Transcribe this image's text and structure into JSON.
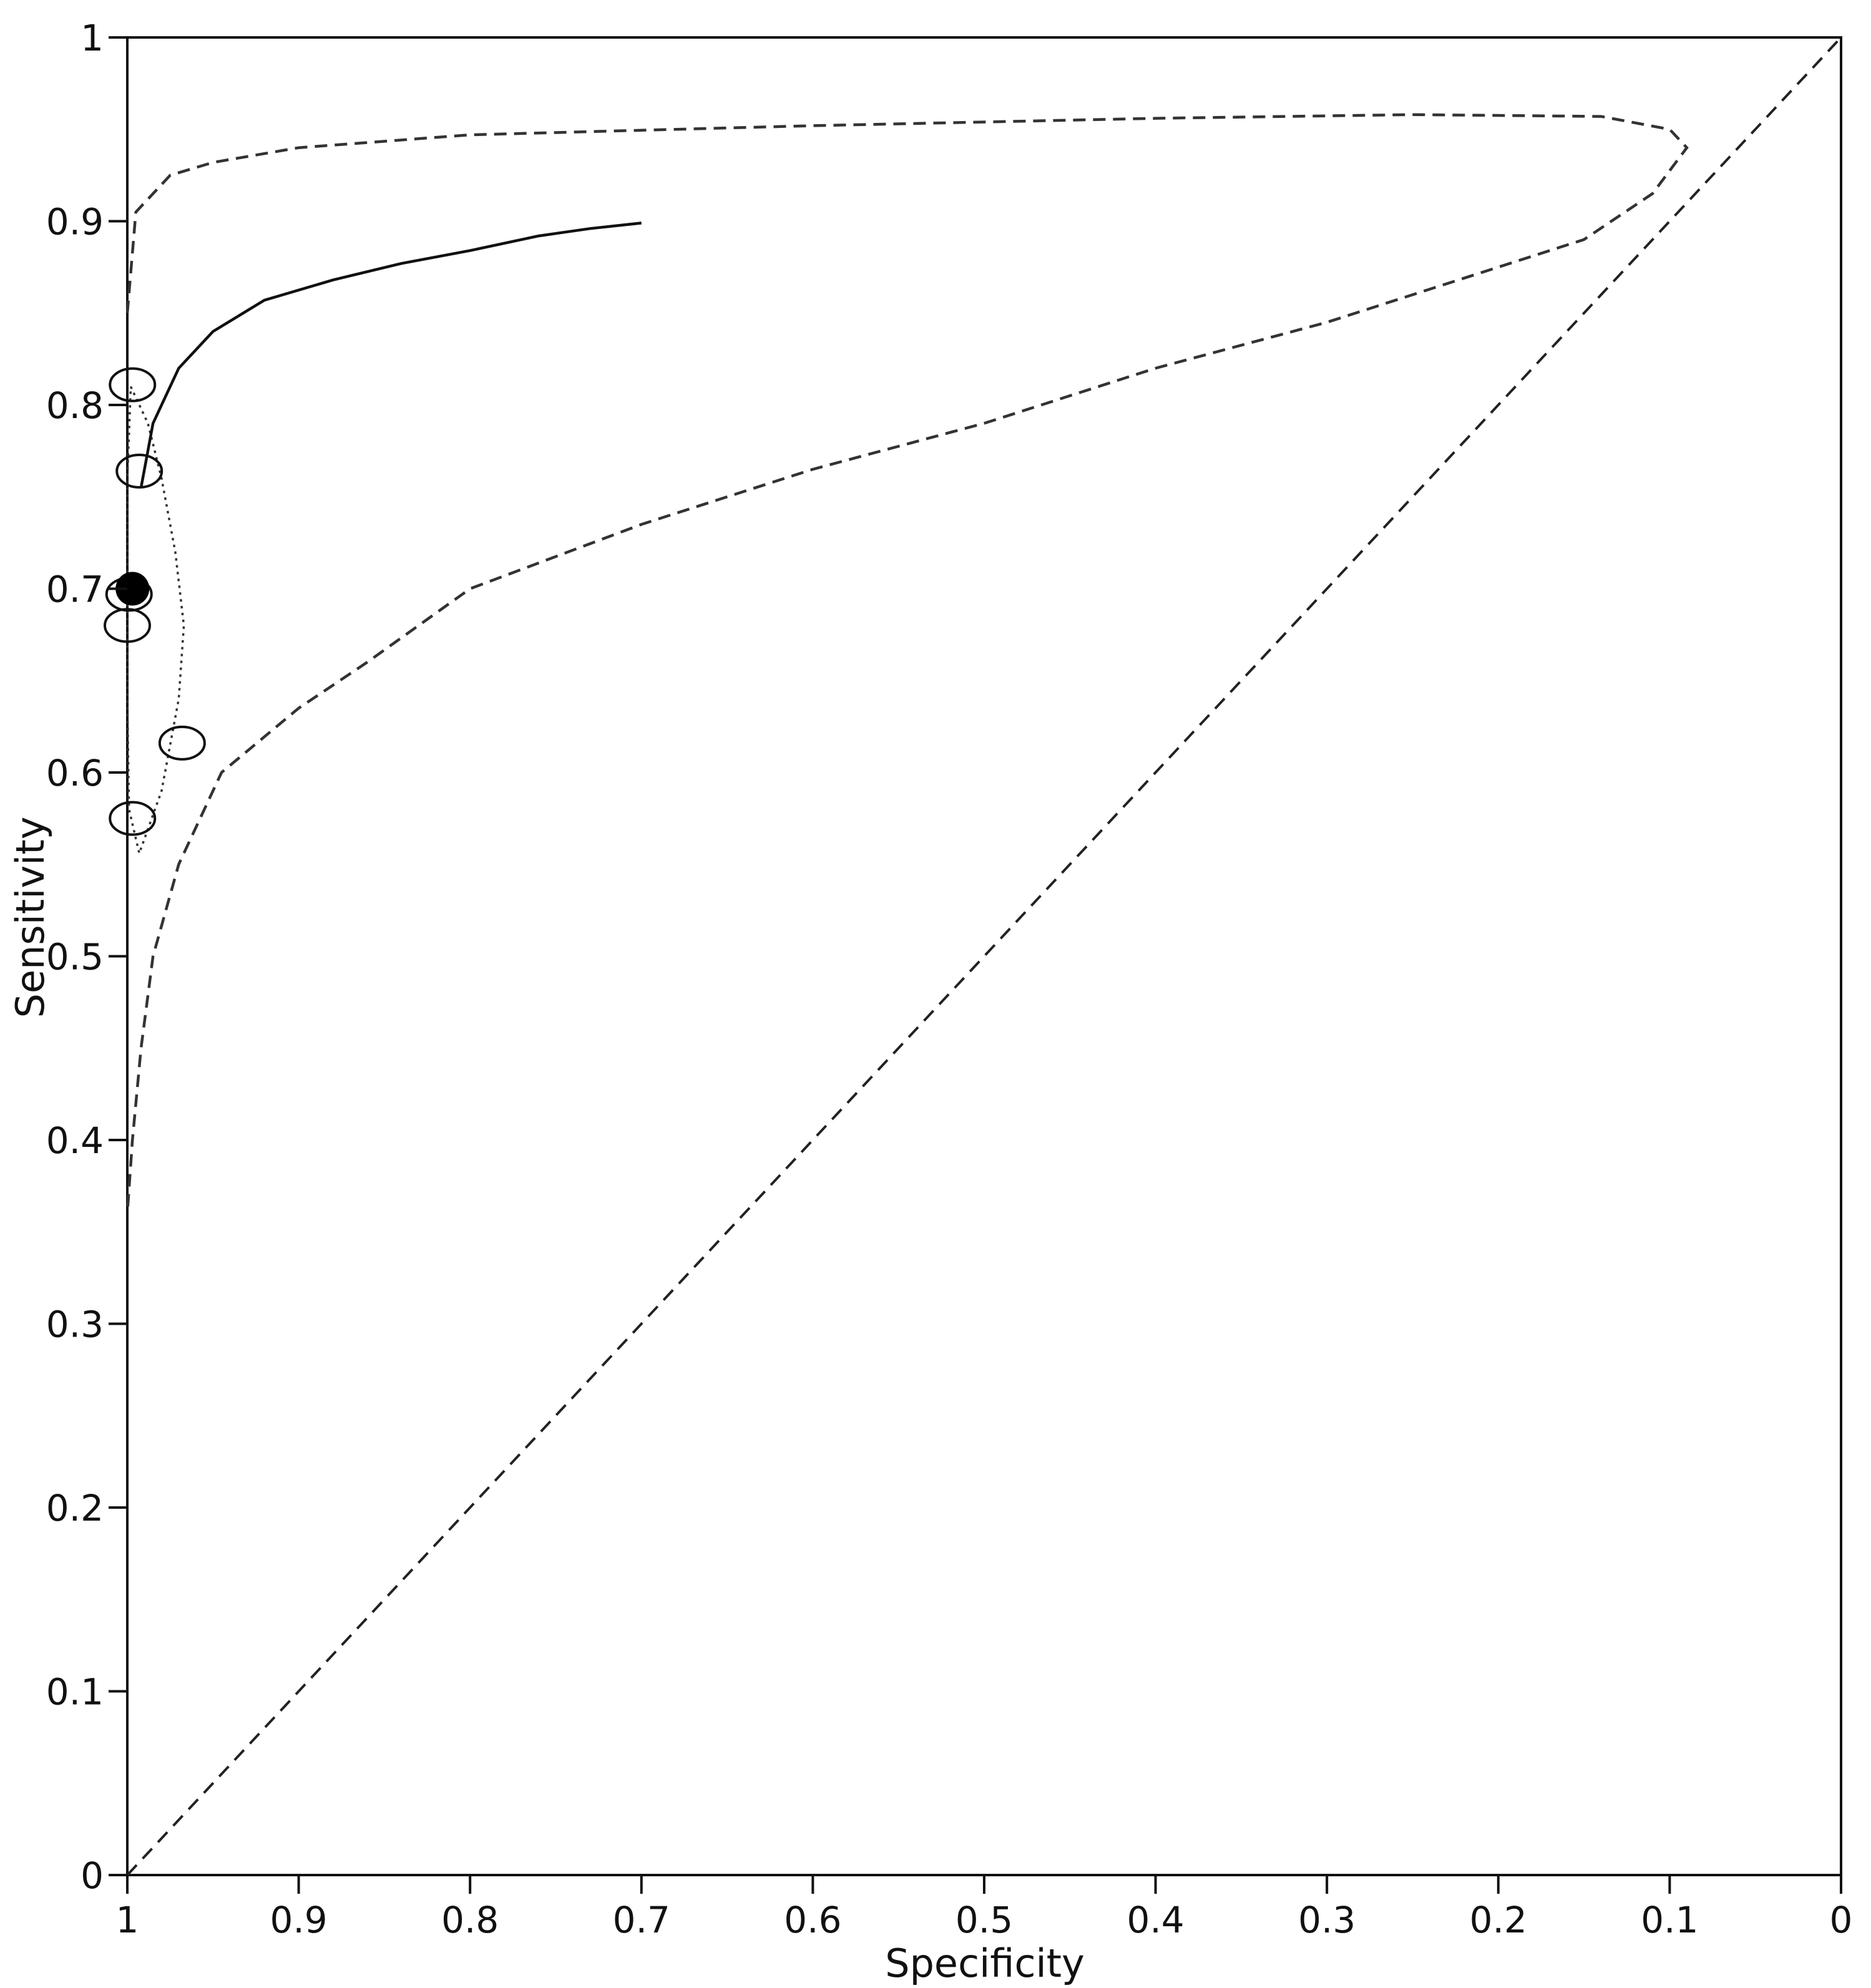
{
  "chart_data": {
    "type": "scatter",
    "title": "",
    "xlabel": "Specificity",
    "ylabel": "Sensitivity",
    "xlim": [
      1,
      0
    ],
    "ylim": [
      0,
      1
    ],
    "x_reversed": true,
    "grid": false,
    "legend": "none",
    "x_ticks": [
      "1",
      "0.9",
      "0.8",
      "0.7",
      "0.6",
      "0.5",
      "0.4",
      "0.3",
      "0.2",
      "0.1",
      "0"
    ],
    "y_ticks": [
      "0",
      "0.1",
      "0.2",
      "0.3",
      "0.4",
      "0.5",
      "0.6",
      "0.7",
      "0.8",
      "0.9",
      "1"
    ],
    "studies": [
      {
        "specificity": 0.997,
        "sensitivity": 0.811
      },
      {
        "specificity": 0.993,
        "sensitivity": 0.764
      },
      {
        "specificity": 1.0,
        "sensitivity": 0.68
      },
      {
        "specificity": 0.999,
        "sensitivity": 0.697
      },
      {
        "specificity": 0.968,
        "sensitivity": 0.616
      },
      {
        "specificity": 0.997,
        "sensitivity": 0.575
      }
    ],
    "summary_point": {
      "specificity": 0.997,
      "sensitivity": 0.7
    },
    "sroc_curve": [
      {
        "specificity": 0.992,
        "sensitivity": 0.755
      },
      {
        "specificity": 0.985,
        "sensitivity": 0.79
      },
      {
        "specificity": 0.97,
        "sensitivity": 0.82
      },
      {
        "specificity": 0.95,
        "sensitivity": 0.84
      },
      {
        "specificity": 0.92,
        "sensitivity": 0.857
      },
      {
        "specificity": 0.88,
        "sensitivity": 0.868
      },
      {
        "specificity": 0.84,
        "sensitivity": 0.877
      },
      {
        "specificity": 0.8,
        "sensitivity": 0.884
      },
      {
        "specificity": 0.76,
        "sensitivity": 0.892
      },
      {
        "specificity": 0.73,
        "sensitivity": 0.896
      },
      {
        "specificity": 0.7,
        "sensitivity": 0.899
      }
    ],
    "confidence_region": [
      {
        "specificity": 0.998,
        "sensitivity": 0.81
      },
      {
        "specificity": 0.988,
        "sensitivity": 0.79
      },
      {
        "specificity": 0.98,
        "sensitivity": 0.76
      },
      {
        "specificity": 0.972,
        "sensitivity": 0.72
      },
      {
        "specificity": 0.967,
        "sensitivity": 0.68
      },
      {
        "specificity": 0.97,
        "sensitivity": 0.64
      },
      {
        "specificity": 0.98,
        "sensitivity": 0.59
      },
      {
        "specificity": 0.993,
        "sensitivity": 0.556
      },
      {
        "specificity": 0.999,
        "sensitivity": 0.58
      },
      {
        "specificity": 1.0,
        "sensitivity": 0.64
      },
      {
        "specificity": 1.0,
        "sensitivity": 0.7
      },
      {
        "specificity": 1.0,
        "sensitivity": 0.76
      },
      {
        "specificity": 0.998,
        "sensitivity": 0.81
      }
    ],
    "prediction_region": [
      {
        "specificity": 1.0,
        "sensitivity": 0.85
      },
      {
        "specificity": 0.995,
        "sensitivity": 0.905
      },
      {
        "specificity": 0.975,
        "sensitivity": 0.925
      },
      {
        "specificity": 0.95,
        "sensitivity": 0.932
      },
      {
        "specificity": 0.9,
        "sensitivity": 0.94
      },
      {
        "specificity": 0.8,
        "sensitivity": 0.947
      },
      {
        "specificity": 0.6,
        "sensitivity": 0.952
      },
      {
        "specificity": 0.4,
        "sensitivity": 0.956
      },
      {
        "specificity": 0.25,
        "sensitivity": 0.958
      },
      {
        "specificity": 0.14,
        "sensitivity": 0.957
      },
      {
        "specificity": 0.1,
        "sensitivity": 0.95
      },
      {
        "specificity": 0.09,
        "sensitivity": 0.94
      },
      {
        "specificity": 0.11,
        "sensitivity": 0.915
      },
      {
        "specificity": 0.15,
        "sensitivity": 0.89
      },
      {
        "specificity": 0.2,
        "sensitivity": 0.875
      },
      {
        "specificity": 0.3,
        "sensitivity": 0.845
      },
      {
        "specificity": 0.4,
        "sensitivity": 0.82
      },
      {
        "specificity": 0.5,
        "sensitivity": 0.79
      },
      {
        "specificity": 0.6,
        "sensitivity": 0.765
      },
      {
        "specificity": 0.7,
        "sensitivity": 0.735
      },
      {
        "specificity": 0.8,
        "sensitivity": 0.7
      },
      {
        "specificity": 0.86,
        "sensitivity": 0.66
      },
      {
        "specificity": 0.9,
        "sensitivity": 0.635
      },
      {
        "specificity": 0.945,
        "sensitivity": 0.6
      },
      {
        "specificity": 0.97,
        "sensitivity": 0.55
      },
      {
        "specificity": 0.985,
        "sensitivity": 0.5
      },
      {
        "specificity": 0.992,
        "sensitivity": 0.45
      },
      {
        "specificity": 0.997,
        "sensitivity": 0.4
      },
      {
        "specificity": 1.0,
        "sensitivity": 0.36
      }
    ],
    "reference_line": [
      {
        "specificity": 1,
        "sensitivity": 0
      },
      {
        "specificity": 0,
        "sensitivity": 1
      }
    ]
  }
}
